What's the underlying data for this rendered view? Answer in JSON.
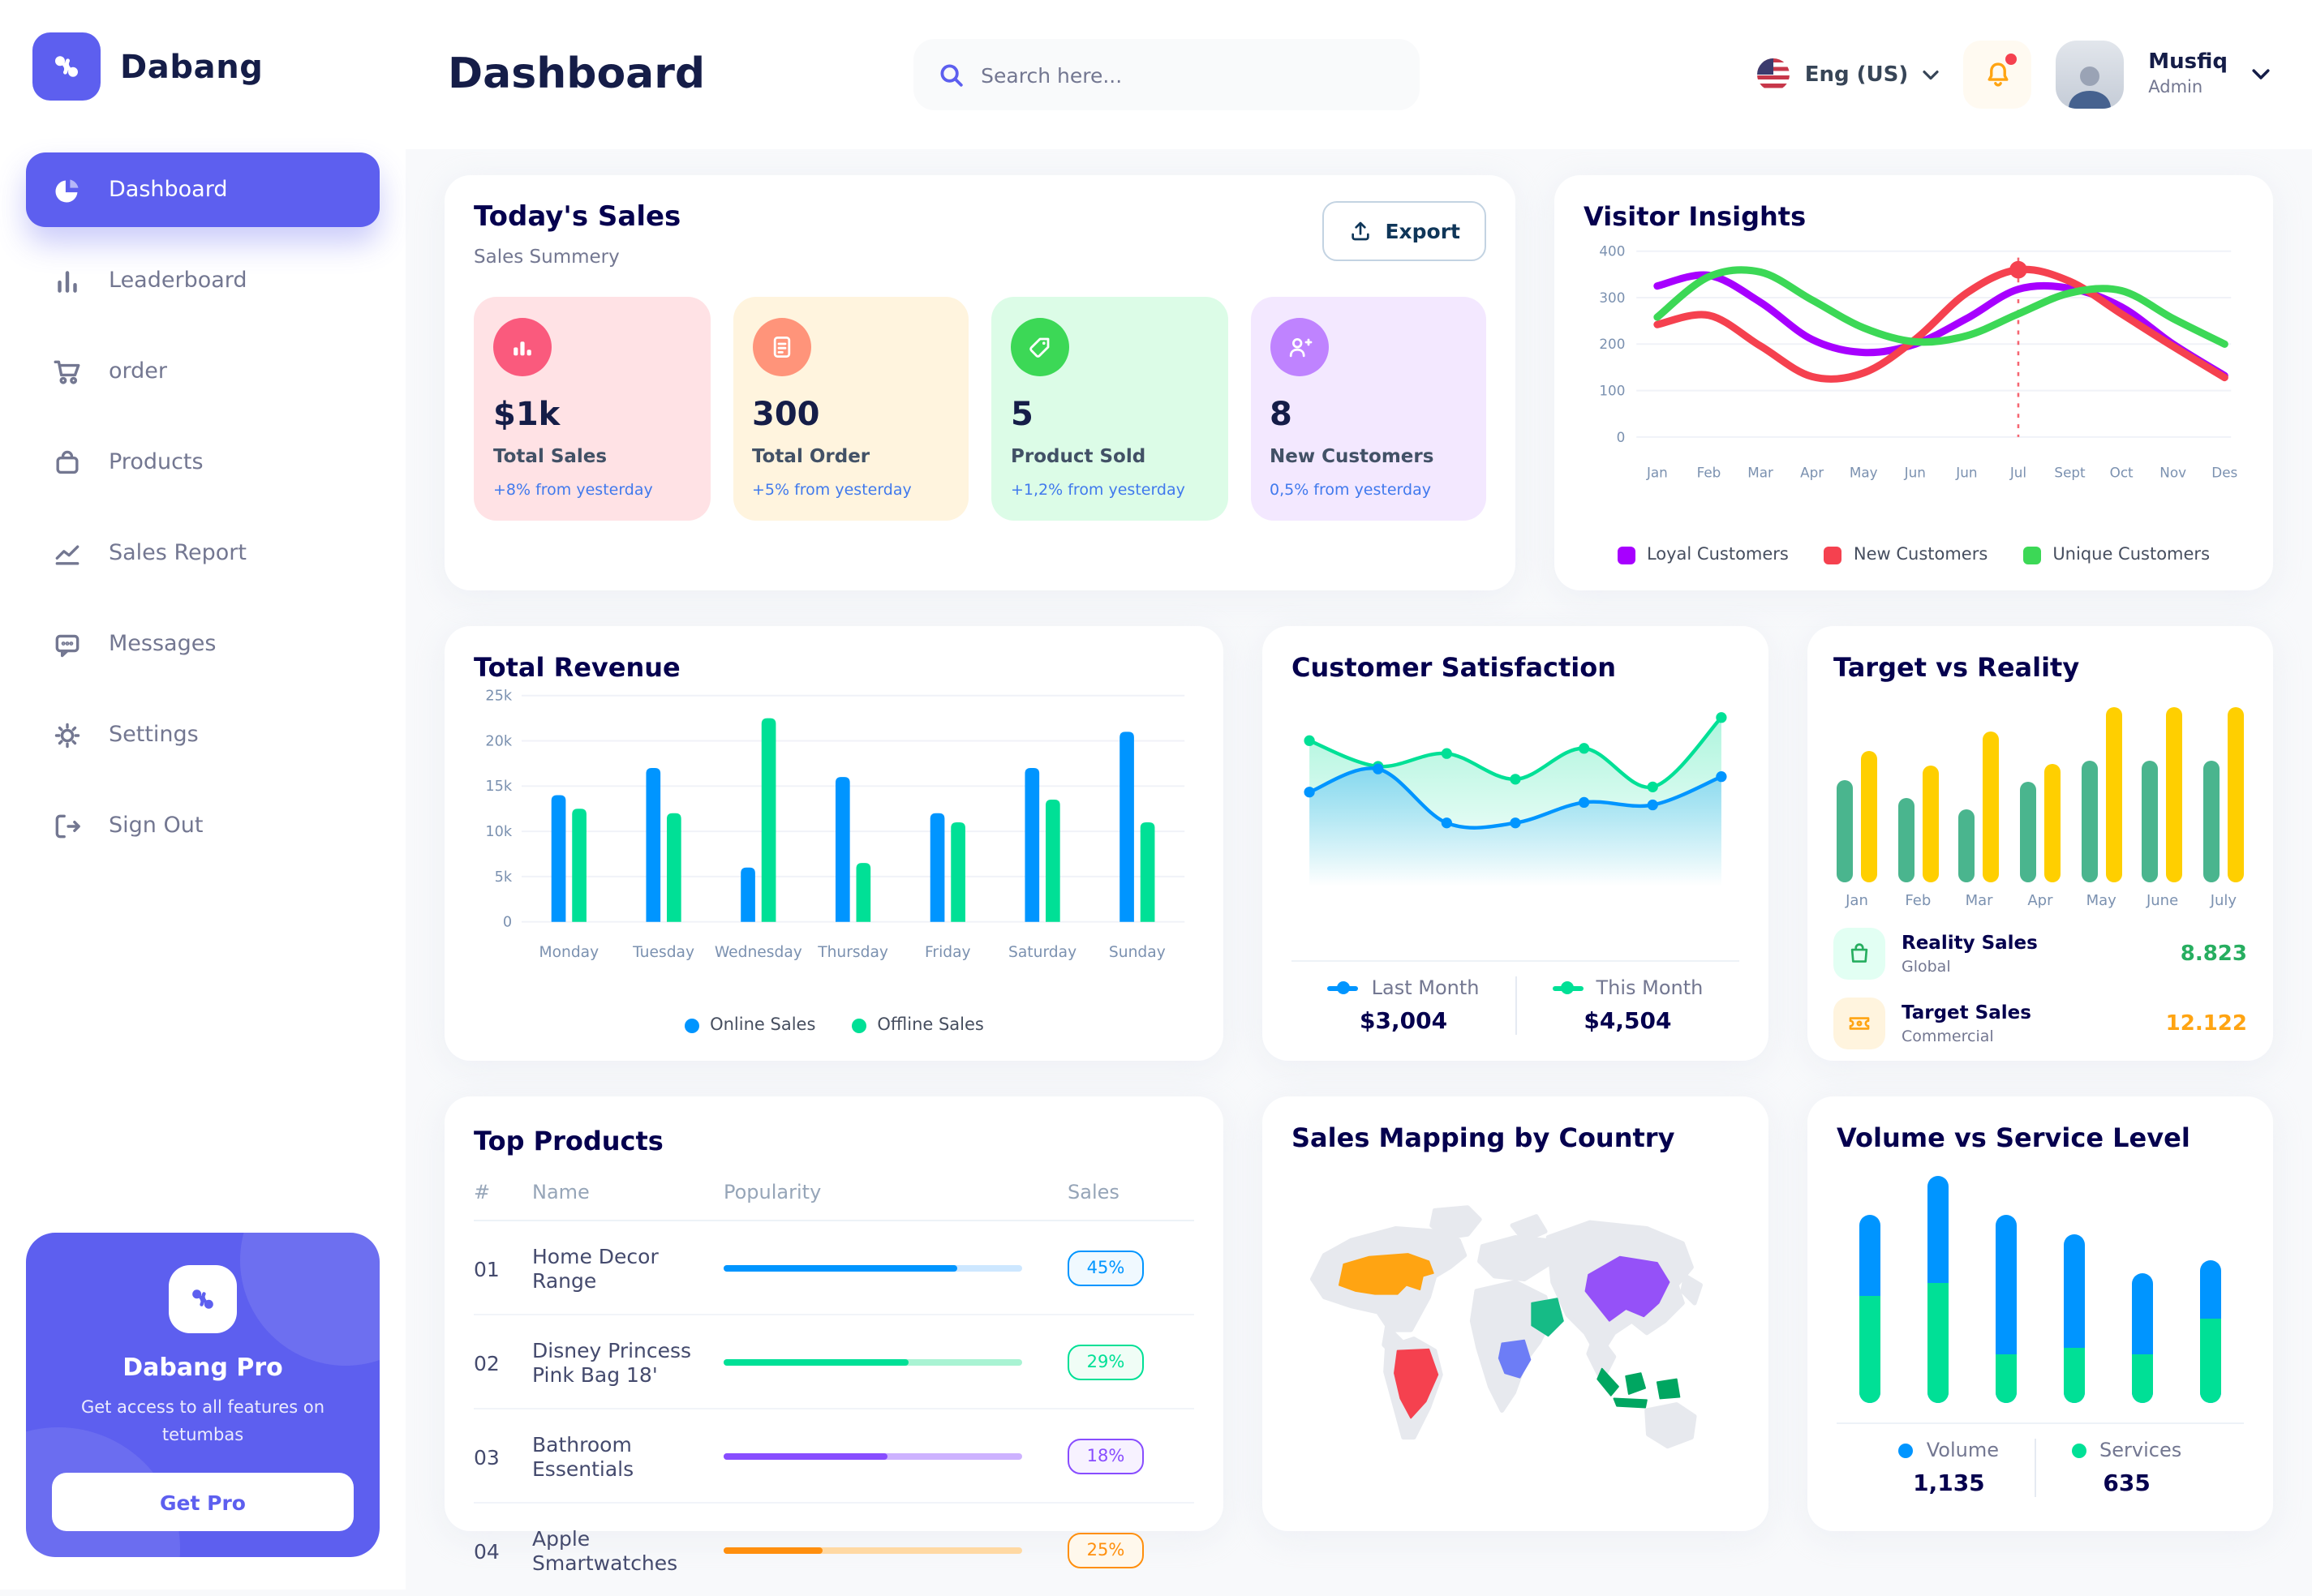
{
  "app": {
    "brand": "Dabang",
    "accent": "#5D5FEF"
  },
  "sidebar": {
    "items": [
      {
        "label": "Dashboard",
        "icon": "pie-chart",
        "active": true
      },
      {
        "label": "Leaderboard",
        "icon": "bar-chart",
        "active": false
      },
      {
        "label": "order",
        "icon": "cart",
        "active": false
      },
      {
        "label": "Products",
        "icon": "bag",
        "active": false
      },
      {
        "label": "Sales Report",
        "icon": "line-chart",
        "active": false
      },
      {
        "label": "Messages",
        "icon": "chat",
        "active": false
      },
      {
        "label": "Settings",
        "icon": "gear",
        "active": false
      },
      {
        "label": "Sign Out",
        "icon": "sign-out",
        "active": false
      }
    ],
    "promo": {
      "title": "Dabang Pro",
      "text": "Get access to all features on tetumbas",
      "button": "Get Pro"
    }
  },
  "header": {
    "title": "Dashboard",
    "search_placeholder": "Search here...",
    "language": "Eng (US)",
    "user": {
      "name": "Musfiq",
      "role": "Admin"
    }
  },
  "todays_sales": {
    "title": "Today's Sales",
    "subtitle": "Sales Summery",
    "export_label": "Export",
    "cards": [
      {
        "value": "$1k",
        "label": "Total Sales",
        "delta": "+8% from yesterday",
        "bg": "#FFE2E5",
        "icon_bg": "#FA5A7D",
        "icon": "bar-stats"
      },
      {
        "value": "300",
        "label": "Total Order",
        "delta": "+5% from yesterday",
        "bg": "#FFF4DE",
        "icon_bg": "#FF947A",
        "icon": "file"
      },
      {
        "value": "5",
        "label": "Product Sold",
        "delta": "+1,2% from yesterday",
        "bg": "#DCFCE7",
        "icon_bg": "#3CD856",
        "icon": "tag"
      },
      {
        "value": "8",
        "label": "New Customers",
        "delta": "0,5% from yesterday",
        "bg": "#F3E8FF",
        "icon_bg": "#BF83FF",
        "icon": "user-plus"
      }
    ]
  },
  "chart_data": [
    {
      "id": "visitor_insights",
      "type": "line",
      "title": "Visitor Insights",
      "x": [
        "Jan",
        "Feb",
        "Mar",
        "Apr",
        "May",
        "Jun",
        "Jun",
        "Jul",
        "Sept",
        "Oct",
        "Nov",
        "Des"
      ],
      "ylim": [
        0,
        400
      ],
      "yticks": [
        0,
        100,
        200,
        300,
        400
      ],
      "grid": true,
      "legend_position": "bottom",
      "series": [
        {
          "name": "Loyal Customers",
          "color": "#A700FF",
          "values": [
            325,
            348,
            290,
            210,
            182,
            200,
            255,
            318,
            320,
            280,
            200,
            132
          ]
        },
        {
          "name": "New Customers",
          "color": "#F5414F",
          "values": [
            242,
            262,
            196,
            130,
            138,
            210,
            310,
            360,
            335,
            265,
            195,
            128
          ]
        },
        {
          "name": "Unique Customers",
          "color": "#3CD856",
          "values": [
            258,
            345,
            355,
            295,
            235,
            205,
            218,
            265,
            310,
            315,
            255,
            200
          ]
        }
      ],
      "highlight": {
        "x_index": 7,
        "series_index": 1
      }
    },
    {
      "id": "total_revenue",
      "type": "bar",
      "title": "Total Revenue",
      "categories": [
        "Monday",
        "Tuesday",
        "Wednesday",
        "Thursday",
        "Friday",
        "Saturday",
        "Sunday"
      ],
      "ylim": [
        0,
        25000
      ],
      "ytick_values": [
        0,
        5000,
        10000,
        15000,
        20000,
        25000
      ],
      "ytick_labels": [
        "0",
        "5k",
        "10k",
        "15k",
        "20k",
        "25k"
      ],
      "grid": true,
      "legend_position": "bottom",
      "series": [
        {
          "name": "Online Sales",
          "color": "#0095FF",
          "values": [
            14000,
            17000,
            6000,
            16000,
            12000,
            17000,
            21000
          ]
        },
        {
          "name": "Offline Sales",
          "color": "#00E096",
          "values": [
            12500,
            12000,
            22500,
            6500,
            11000,
            13500,
            11000
          ]
        }
      ]
    },
    {
      "id": "customer_satisfaction",
      "type": "area",
      "title": "Customer Satisfaction",
      "x": [
        1,
        2,
        3,
        4,
        5,
        6,
        7
      ],
      "ylim": [
        0,
        6.5
      ],
      "legend_position": "bottom",
      "series": [
        {
          "name": "Last Month",
          "color": "#0095FF",
          "total": "$3,004",
          "values": [
            3.2,
            4.1,
            2.0,
            2.0,
            2.8,
            2.7,
            3.8
          ]
        },
        {
          "name": "This Month",
          "color": "#00E096",
          "total": "$4,504",
          "values": [
            5.2,
            4.2,
            4.7,
            3.7,
            4.9,
            3.4,
            6.1
          ]
        }
      ]
    },
    {
      "id": "target_vs_reality",
      "type": "bar",
      "title": "Target vs Reality",
      "categories": [
        "Jan",
        "Feb",
        "Mar",
        "Apr",
        "May",
        "June",
        "July"
      ],
      "ylim": [
        0,
        15
      ],
      "legend_position": "bottom",
      "series": [
        {
          "name": "Reality Sales",
          "subtitle": "Global",
          "color": "#4AB58E",
          "value_label": "8.823",
          "value_color": "#27AE60",
          "tile_bg": "#E2FFF3",
          "values": [
            8.5,
            7.0,
            6.0,
            8.3,
            10.1,
            10.1,
            10.0
          ]
        },
        {
          "name": "Target Sales",
          "subtitle": "Commercial",
          "color": "#FFCF00",
          "value_label": "12.122",
          "value_color": "#FFA412",
          "tile_bg": "#FFF4DE",
          "values": [
            10.8,
            9.7,
            12.4,
            9.8,
            14.4,
            14.4,
            14.4
          ]
        }
      ]
    },
    {
      "id": "volume_vs_service",
      "type": "stacked-bar",
      "title": "Volume vs Service Level",
      "categories": [
        "1",
        "2",
        "3",
        "4",
        "5",
        "6"
      ],
      "ylim": [
        0,
        73
      ],
      "legend_position": "bottom",
      "series": [
        {
          "name": "Volume",
          "color": "#0095FF",
          "total": "1,135",
          "values": [
            25,
            33,
            43,
            35,
            25,
            18
          ]
        },
        {
          "name": "Services",
          "color": "#00E096",
          "total": "635",
          "values": [
            33,
            37,
            15,
            17,
            15,
            26
          ]
        }
      ]
    }
  ],
  "top_products": {
    "title": "Top Products",
    "columns": [
      "#",
      "Name",
      "Popularity",
      "Sales"
    ],
    "rows": [
      {
        "id": "01",
        "name": "Home Decor Range",
        "popularity": 78,
        "sales": "45%",
        "color": "#0095FF",
        "tint": "#CDE7FF",
        "badge_bg": "#F0F9FF"
      },
      {
        "id": "02",
        "name": "Disney Princess Pink Bag 18'",
        "popularity": 62,
        "sales": "29%",
        "color": "#00E096",
        "tint": "#A9F3D3",
        "badge_bg": "#F0FDF6"
      },
      {
        "id": "03",
        "name": "Bathroom Essentials",
        "popularity": 55,
        "sales": "18%",
        "color": "#884DFF",
        "tint": "#CDB2FF",
        "badge_bg": "#F7F2FF"
      },
      {
        "id": "04",
        "name": "Apple Smartwatches",
        "popularity": 33,
        "sales": "25%",
        "color": "#FF8F0D",
        "tint": "#FFD9A3",
        "badge_bg": "#FFF8EC"
      }
    ]
  },
  "sales_map": {
    "title": "Sales Mapping by Country",
    "land_color": "#E7E9EE",
    "countries": [
      {
        "name": "United States",
        "color": "#FFA412"
      },
      {
        "name": "Brazil",
        "color": "#F5414F"
      },
      {
        "name": "Saudi Arabia",
        "color": "#16BB86"
      },
      {
        "name": "Democratic Republic of Congo",
        "color": "#6D7DF6"
      },
      {
        "name": "China",
        "color": "#9551F8"
      },
      {
        "name": "Indonesia",
        "color": "#00A661"
      }
    ]
  }
}
